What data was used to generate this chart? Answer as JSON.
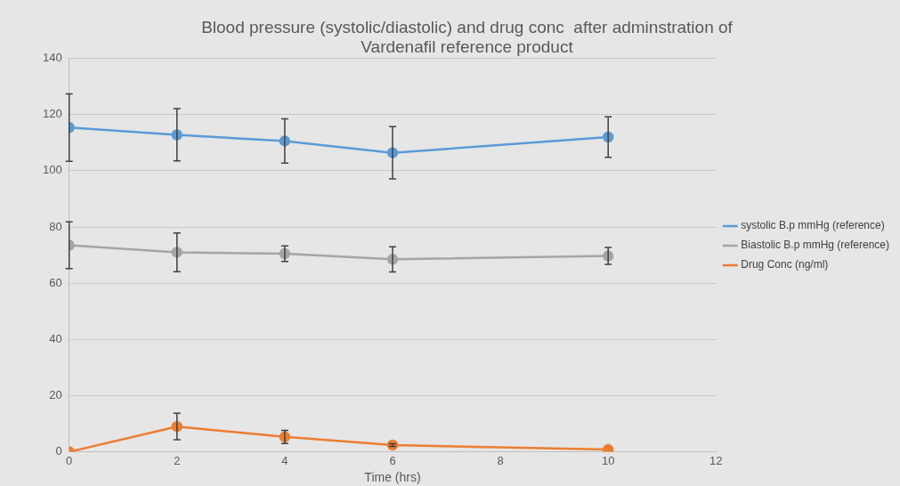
{
  "chart_data": {
    "type": "line",
    "title": "Blood pressure (systolic/diastolic) and drug conc  after adminstration of\nVardenafil reference product",
    "xlabel": "Time (hrs)",
    "x": [
      0,
      2,
      4,
      6,
      10
    ],
    "xlim": [
      0,
      12
    ],
    "xticks": [
      0,
      2,
      4,
      6,
      8,
      10,
      12
    ],
    "ylim": [
      0,
      140
    ],
    "yticks": [
      0,
      20,
      40,
      60,
      80,
      100,
      120,
      140
    ],
    "grid": "y",
    "legend": "right",
    "marker": "circle",
    "line_style": "solid",
    "series": [
      {
        "name": "systolic B.p mmHg (reference)",
        "color": "#5b9bd5",
        "values": [
          115.4,
          112.8,
          110.6,
          106.4,
          112
        ],
        "errors": [
          12,
          9.3,
          7.9,
          9.3,
          7.2
        ]
      },
      {
        "name": "Biastolic B.p mmHg (reference)",
        "color": "#a5a5a5",
        "values": [
          73.5,
          71,
          70.5,
          68.5,
          69.7
        ],
        "errors": [
          8.3,
          6.9,
          2.8,
          4.5,
          3
        ]
      },
      {
        "name": "Drug Conc (ng/ml)",
        "color": "#ed7d31",
        "values": [
          0,
          9,
          5.3,
          2.4,
          0.8
        ],
        "errors": [
          null,
          4.7,
          2.3,
          0.5,
          null
        ]
      }
    ]
  }
}
